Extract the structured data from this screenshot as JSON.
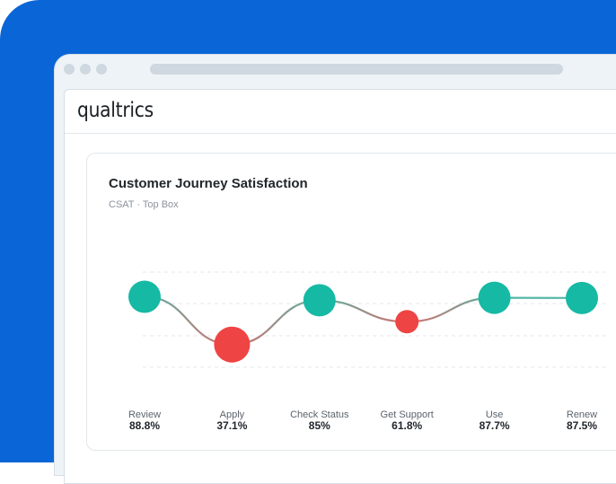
{
  "app": {
    "logo": "qualtrics"
  },
  "colors": {
    "brand_blue": "#0a66d6",
    "good": "#16b9a4",
    "bad": "#ef4444"
  },
  "card": {
    "title": "Customer Journey Satisfaction",
    "subtitle": "CSAT · Top Box"
  },
  "chart_data": {
    "type": "line",
    "title": "Customer Journey Satisfaction",
    "subtitle": "CSAT · Top Box",
    "categories": [
      "Review",
      "Apply",
      "Check Status",
      "Get Support",
      "Use",
      "Renew"
    ],
    "series": [
      {
        "values": [
          88.8,
          37.1,
          85,
          61.8,
          87.7,
          87.5
        ],
        "labels": [
          "88.8%",
          "37.1%",
          "85%",
          "61.8%",
          "87.7%",
          "87.5%"
        ],
        "status": [
          "good",
          "bad",
          "good",
          "bad",
          "good",
          "good"
        ]
      }
    ],
    "ylim": [
      30,
      100
    ],
    "grid": true,
    "legend": "none"
  }
}
